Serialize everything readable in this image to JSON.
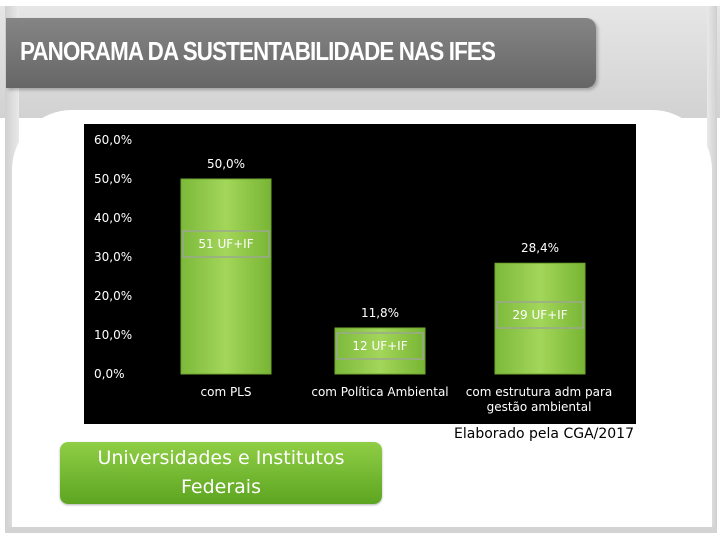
{
  "header": {
    "title": "PANORAMA DA SUSTENTABILIDADE NAS IFES"
  },
  "credit": "Elaborado pela CGA/2017",
  "footer_label": "Universidades e Institutos Federais",
  "colors": {
    "bar": "#8bc34a",
    "chart_bg": "#000000",
    "title_bar": "#737373",
    "label_bg": "#6db42c"
  },
  "chart_data": {
    "type": "bar",
    "title": "",
    "xlabel": "",
    "ylabel": "",
    "ylim": [
      0,
      60
    ],
    "yticks": [
      "0,0%",
      "10,0%",
      "20,0%",
      "30,0%",
      "40,0%",
      "50,0%",
      "60,0%"
    ],
    "grid": false,
    "legend": "none",
    "categories": [
      [
        "com PLS"
      ],
      [
        "com Política Ambiental"
      ],
      [
        "com estrutura adm para",
        "gestão ambiental"
      ]
    ],
    "values": [
      50.0,
      11.8,
      28.4
    ],
    "data_labels": [
      "50,0%",
      "11,8%",
      "28,4%"
    ],
    "annotations": [
      "51 UF+IF",
      "12 UF+IF",
      "29 UF+IF"
    ]
  }
}
